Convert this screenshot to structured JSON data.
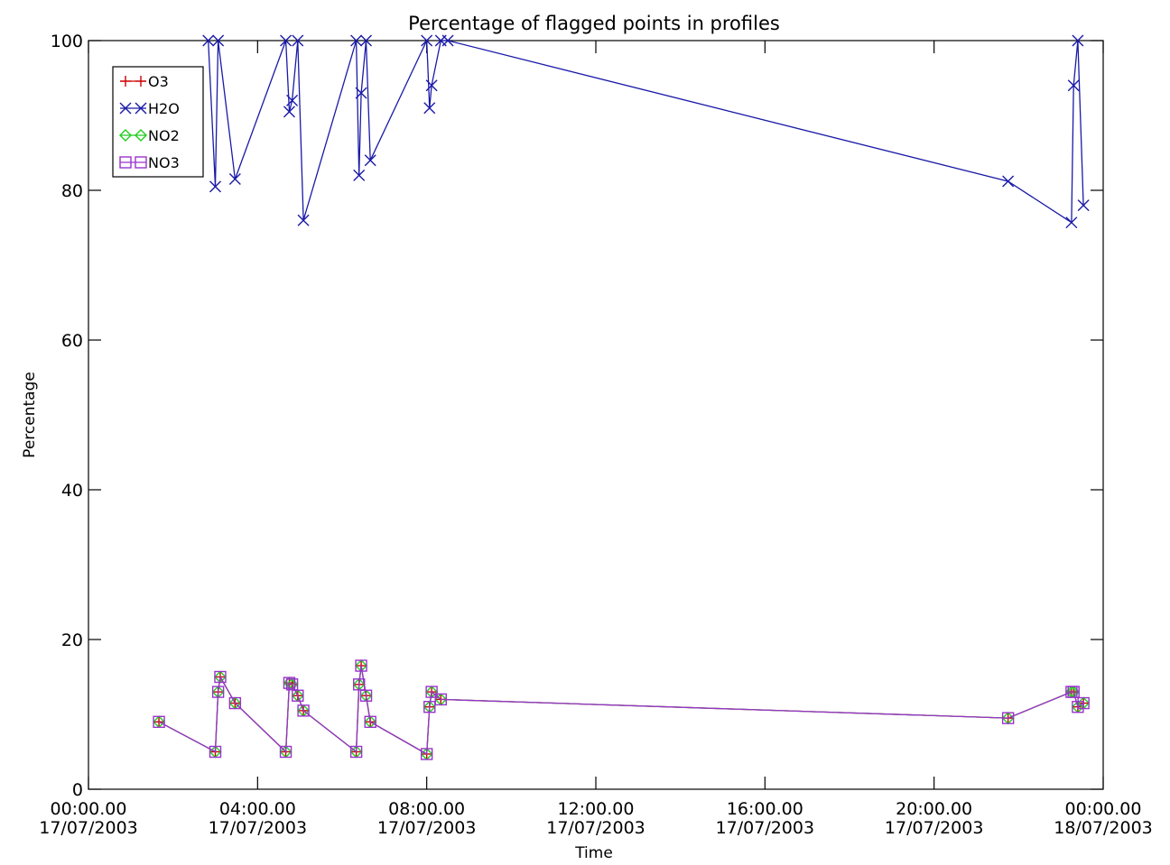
{
  "chart_data": {
    "type": "line",
    "title": "Percentage of flagged points in profiles",
    "xlabel": "Time",
    "ylabel": "Percentage",
    "xlim": [
      "2003-07-17T00:00",
      "2003-07-18T00:00"
    ],
    "ylim": [
      0,
      100
    ],
    "x_ticks": [
      {
        "time": "00:00.00",
        "date": "17/07/2003",
        "at": "2003-07-17T00:00"
      },
      {
        "time": "04:00.00",
        "date": "17/07/2003",
        "at": "2003-07-17T04:00"
      },
      {
        "time": "08:00.00",
        "date": "17/07/2003",
        "at": "2003-07-17T08:00"
      },
      {
        "time": "12:00.00",
        "date": "17/07/2003",
        "at": "2003-07-17T12:00"
      },
      {
        "time": "16:00.00",
        "date": "17/07/2003",
        "at": "2003-07-17T16:00"
      },
      {
        "time": "20:00.00",
        "date": "17/07/2003",
        "at": "2003-07-17T20:00"
      },
      {
        "time": "00:00.00",
        "date": "18/07/2003",
        "at": "2003-07-18T00:00"
      }
    ],
    "y_ticks": [
      "0",
      "20",
      "40",
      "60",
      "80",
      "100"
    ],
    "grid": false,
    "legend_position": "top-left",
    "series": [
      {
        "name": "O3",
        "color": "#cc0000",
        "marker": "plus",
        "x": [
          "2003-07-17T01:40",
          "2003-07-17T03:00",
          "2003-07-17T03:04",
          "2003-07-17T03:07",
          "2003-07-17T03:28",
          "2003-07-17T04:40",
          "2003-07-17T04:45",
          "2003-07-17T04:49",
          "2003-07-17T04:57",
          "2003-07-17T05:05",
          "2003-07-17T06:20",
          "2003-07-17T06:24",
          "2003-07-17T06:27",
          "2003-07-17T06:34",
          "2003-07-17T06:40",
          "2003-07-17T08:00",
          "2003-07-17T08:04",
          "2003-07-17T08:07",
          "2003-07-17T08:20",
          "2003-07-17T21:45",
          "2003-07-17T23:15",
          "2003-07-17T23:18",
          "2003-07-17T23:24",
          "2003-07-17T23:32"
        ],
        "y": [
          9,
          5,
          13,
          15,
          11.5,
          5,
          14.2,
          14,
          12.5,
          10.5,
          5,
          14,
          16.5,
          12.5,
          9,
          4.7,
          11,
          13,
          12,
          9.5,
          13,
          13,
          11,
          11.5
        ]
      },
      {
        "name": "H2O",
        "color": "#1a1aa8",
        "marker": "x",
        "x": [
          "2003-07-17T02:50",
          "2003-07-17T03:00",
          "2003-07-17T03:04",
          "2003-07-17T03:28",
          "2003-07-17T04:40",
          "2003-07-17T04:45",
          "2003-07-17T04:49",
          "2003-07-17T04:57",
          "2003-07-17T05:05",
          "2003-07-17T06:20",
          "2003-07-17T06:24",
          "2003-07-17T06:27",
          "2003-07-17T06:34",
          "2003-07-17T06:40",
          "2003-07-17T08:00",
          "2003-07-17T08:04",
          "2003-07-17T08:07",
          "2003-07-17T08:20",
          "2003-07-17T08:30",
          "2003-07-17T21:45",
          "2003-07-17T23:15",
          "2003-07-17T23:18",
          "2003-07-17T23:24",
          "2003-07-17T23:32"
        ],
        "y": [
          100,
          80.5,
          100,
          81.5,
          100,
          90.5,
          92,
          100,
          76,
          100,
          82,
          93,
          100,
          84,
          100,
          91,
          94,
          100,
          100,
          81.2,
          75.7,
          94,
          100,
          78
        ]
      },
      {
        "name": "NO2",
        "color": "#22cc22",
        "marker": "diamond",
        "x": [
          "2003-07-17T01:40",
          "2003-07-17T03:00",
          "2003-07-17T03:04",
          "2003-07-17T03:07",
          "2003-07-17T03:28",
          "2003-07-17T04:40",
          "2003-07-17T04:45",
          "2003-07-17T04:49",
          "2003-07-17T04:57",
          "2003-07-17T05:05",
          "2003-07-17T06:20",
          "2003-07-17T06:24",
          "2003-07-17T06:27",
          "2003-07-17T06:34",
          "2003-07-17T06:40",
          "2003-07-17T08:00",
          "2003-07-17T08:04",
          "2003-07-17T08:07",
          "2003-07-17T08:20",
          "2003-07-17T21:45",
          "2003-07-17T23:15",
          "2003-07-17T23:18",
          "2003-07-17T23:24",
          "2003-07-17T23:32"
        ],
        "y": [
          9,
          5,
          13,
          15,
          11.5,
          5,
          14.2,
          14,
          12.5,
          10.5,
          5,
          14,
          16.5,
          12.5,
          9,
          4.7,
          11,
          13,
          12,
          9.5,
          13,
          13,
          11,
          11.5
        ]
      },
      {
        "name": "NO3",
        "color": "#9933cc",
        "marker": "square",
        "x": [
          "2003-07-17T01:40",
          "2003-07-17T03:00",
          "2003-07-17T03:04",
          "2003-07-17T03:07",
          "2003-07-17T03:28",
          "2003-07-17T04:40",
          "2003-07-17T04:45",
          "2003-07-17T04:49",
          "2003-07-17T04:57",
          "2003-07-17T05:05",
          "2003-07-17T06:20",
          "2003-07-17T06:24",
          "2003-07-17T06:27",
          "2003-07-17T06:34",
          "2003-07-17T06:40",
          "2003-07-17T08:00",
          "2003-07-17T08:04",
          "2003-07-17T08:07",
          "2003-07-17T08:20",
          "2003-07-17T21:45",
          "2003-07-17T23:15",
          "2003-07-17T23:18",
          "2003-07-17T23:24",
          "2003-07-17T23:32"
        ],
        "y": [
          9,
          5,
          13,
          15,
          11.5,
          5,
          14.2,
          14,
          12.5,
          10.5,
          5,
          14,
          16.5,
          12.5,
          9,
          4.7,
          11,
          13,
          12,
          9.5,
          13,
          13,
          11,
          11.5
        ]
      }
    ]
  }
}
